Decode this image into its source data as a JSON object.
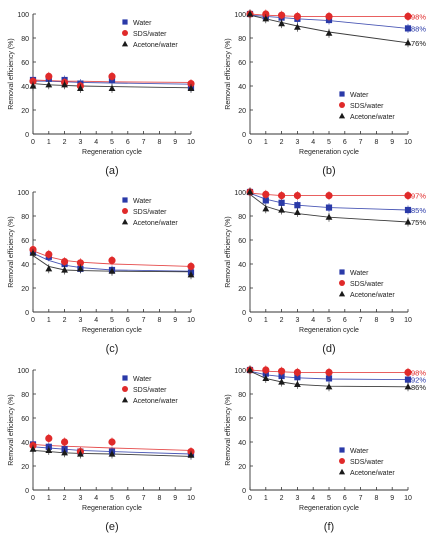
{
  "figure": {
    "series_colors": {
      "Water": "#2a3aa8",
      "SDS/water": "#e02a2a",
      "Acetone/water": "#1a1a1a"
    },
    "annotation_colors": [
      "#e02a2a",
      "#2a3aa8",
      "#1a1a1a"
    ]
  },
  "chart_data": [
    {
      "type": "scatter",
      "panel_label": "(a)",
      "xlabel": "Regeneration cycle",
      "ylabel": "Removal efficiency (%)",
      "xlim": [
        0,
        10
      ],
      "ylim": [
        0,
        100
      ],
      "xticks": [
        "0",
        "1",
        "2",
        "3",
        "4",
        "5",
        "6",
        "7",
        "8",
        "9",
        "10"
      ],
      "yticks": [
        "0",
        "20",
        "40",
        "60",
        "80",
        "100"
      ],
      "legend": "top-right",
      "x": [
        0,
        1,
        2,
        3,
        5,
        10
      ],
      "series": [
        {
          "name": "Water",
          "values": [
            45,
            46,
            45,
            42,
            45,
            39
          ],
          "fit": [
            44,
            44,
            43.5,
            43,
            42.5,
            41.5
          ]
        },
        {
          "name": "SDS/water",
          "values": [
            44,
            48,
            43,
            40,
            48,
            42
          ],
          "fit": [
            45,
            44.5,
            44,
            44,
            43.5,
            43
          ]
        },
        {
          "name": "Acetone/water",
          "values": [
            40,
            41,
            41,
            38,
            38,
            38
          ],
          "fit": [
            42,
            41,
            40.5,
            40,
            39.5,
            38.5
          ]
        }
      ],
      "annotations": []
    },
    {
      "type": "scatter",
      "panel_label": "(b)",
      "xlabel": "Regeneration cycle",
      "ylabel": "Removal efficiency (%)",
      "xlim": [
        0,
        10
      ],
      "ylim": [
        0,
        100
      ],
      "xticks": [
        "0",
        "1",
        "2",
        "3",
        "4",
        "5",
        "6",
        "7",
        "8",
        "9",
        "10"
      ],
      "yticks": [
        "0",
        "20",
        "40",
        "60",
        "80",
        "100"
      ],
      "legend": "bottom-right",
      "x": [
        0,
        1,
        2,
        3,
        5,
        10
      ],
      "series": [
        {
          "name": "Water",
          "values": [
            100,
            98,
            97,
            96,
            95,
            88
          ],
          "fit": [
            99,
            98,
            97,
            96,
            94.5,
            88
          ]
        },
        {
          "name": "SDS/water",
          "values": [
            100,
            100,
            99,
            98,
            98,
            98
          ],
          "fit": [
            100,
            99,
            98.5,
            98,
            98,
            98
          ]
        },
        {
          "name": "Acetone/water",
          "values": [
            100,
            96,
            92,
            89,
            84,
            76
          ],
          "fit": [
            99,
            96,
            93,
            90,
            85,
            76
          ]
        }
      ],
      "annotations": [
        "98%",
        "88%",
        "76%"
      ]
    },
    {
      "type": "scatter",
      "panel_label": "(c)",
      "xlabel": "Regeneration cycle",
      "ylabel": "Removal efficiency (%)",
      "xlim": [
        0,
        10
      ],
      "ylim": [
        0,
        100
      ],
      "xticks": [
        "0",
        "1",
        "2",
        "3",
        "4",
        "5",
        "6",
        "7",
        "8",
        "9",
        "10"
      ],
      "yticks": [
        "0",
        "20",
        "40",
        "60",
        "80",
        "100"
      ],
      "legend": "top-right",
      "x": [
        0,
        1,
        2,
        3,
        5,
        10
      ],
      "series": [
        {
          "name": "Water",
          "values": [
            50,
            46,
            40,
            36,
            35,
            33
          ],
          "fit": [
            49,
            43,
            39,
            37,
            35,
            34
          ]
        },
        {
          "name": "SDS/water",
          "values": [
            52,
            48,
            42,
            41,
            43,
            38
          ],
          "fit": [
            51,
            46,
            43,
            41.5,
            40,
            38
          ]
        },
        {
          "name": "Acetone/water",
          "values": [
            49,
            36,
            35,
            36,
            34,
            31
          ],
          "fit": [
            47,
            38,
            35,
            34.5,
            34,
            33.5
          ]
        }
      ],
      "annotations": []
    },
    {
      "type": "scatter",
      "panel_label": "(d)",
      "xlabel": "Regeneration cycle",
      "ylabel": "Removal efficiency (%)",
      "xlim": [
        0,
        10
      ],
      "ylim": [
        0,
        100
      ],
      "xticks": [
        "0",
        "1",
        "2",
        "3",
        "4",
        "5",
        "6",
        "7",
        "8",
        "9",
        "10"
      ],
      "yticks": [
        "0",
        "20",
        "40",
        "60",
        "80",
        "100"
      ],
      "legend": "bottom-right",
      "x": [
        0,
        1,
        2,
        3,
        5,
        10
      ],
      "series": [
        {
          "name": "Water",
          "values": [
            100,
            93,
            91,
            89,
            87,
            85
          ],
          "fit": [
            99,
            94,
            91,
            89,
            87,
            85
          ]
        },
        {
          "name": "SDS/water",
          "values": [
            100,
            98,
            97,
            97,
            97,
            97
          ],
          "fit": [
            99,
            98,
            97,
            97,
            97,
            97
          ]
        },
        {
          "name": "Acetone/water",
          "values": [
            100,
            86,
            85,
            83,
            79,
            75
          ],
          "fit": [
            98,
            88,
            84,
            82,
            79,
            75
          ]
        }
      ],
      "annotations": [
        "97%",
        "85%",
        "75%"
      ]
    },
    {
      "type": "scatter",
      "panel_label": "(e)",
      "xlabel": "Regeneration cycle",
      "ylabel": "Removal efficiency (%)",
      "xlim": [
        0,
        10
      ],
      "ylim": [
        0,
        100
      ],
      "xticks": [
        "0",
        "1",
        "2",
        "3",
        "4",
        "5",
        "6",
        "7",
        "8",
        "9",
        "10"
      ],
      "yticks": [
        "0",
        "20",
        "40",
        "60",
        "80",
        "100"
      ],
      "legend": "top-right",
      "x": [
        0,
        1,
        2,
        3,
        5,
        10
      ],
      "series": [
        {
          "name": "Water",
          "values": [
            38,
            36,
            34,
            32,
            32,
            30
          ],
          "fit": [
            36,
            35,
            34,
            33,
            32,
            30
          ]
        },
        {
          "name": "SDS/water",
          "values": [
            37,
            43,
            40,
            32,
            40,
            32
          ],
          "fit": [
            38,
            37,
            36.5,
            36,
            35,
            33
          ]
        },
        {
          "name": "Acetone/water",
          "values": [
            34,
            33,
            31,
            30,
            30,
            29
          ],
          "fit": [
            33,
            32,
            31,
            30.5,
            30,
            28
          ]
        }
      ],
      "annotations": []
    },
    {
      "type": "scatter",
      "panel_label": "(f)",
      "xlabel": "Regeneration cycle",
      "ylabel": "Removal efficiency (%)",
      "xlim": [
        0,
        10
      ],
      "ylim": [
        0,
        100
      ],
      "xticks": [
        "0",
        "1",
        "2",
        "3",
        "4",
        "5",
        "6",
        "7",
        "8",
        "9",
        "10"
      ],
      "yticks": [
        "0",
        "20",
        "40",
        "60",
        "80",
        "100"
      ],
      "legend": "bottom-right",
      "x": [
        0,
        1,
        2,
        3,
        5,
        10
      ],
      "series": [
        {
          "name": "Water",
          "values": [
            100,
            97,
            95,
            94,
            93,
            92
          ],
          "fit": [
            99,
            96,
            94.5,
            93.5,
            92.5,
            92
          ]
        },
        {
          "name": "SDS/water",
          "values": [
            100,
            100,
            99,
            98,
            98,
            98
          ],
          "fit": [
            100,
            99,
            98.5,
            98,
            98,
            98
          ]
        },
        {
          "name": "Acetone/water",
          "values": [
            100,
            93,
            90,
            88,
            86,
            86
          ],
          "fit": [
            99,
            93,
            90,
            88,
            86.5,
            86
          ]
        }
      ],
      "annotations": [
        "98%",
        "92%",
        "86%"
      ]
    }
  ]
}
